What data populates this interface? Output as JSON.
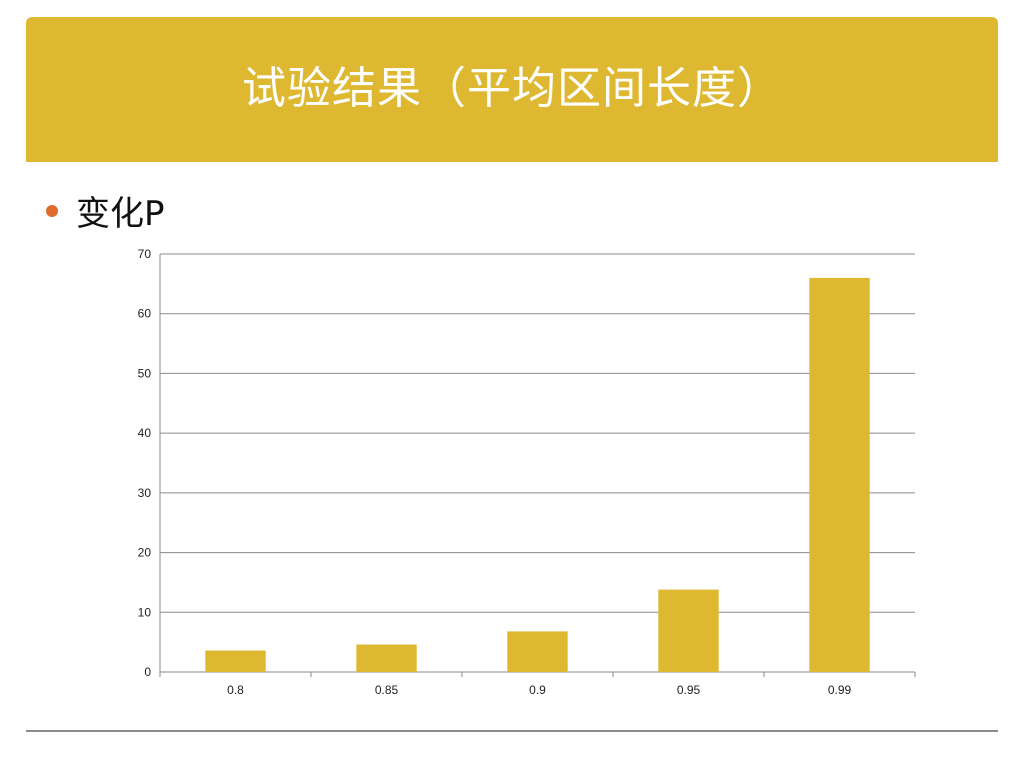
{
  "slide": {
    "title": "试验结果（平均区间长度）",
    "bullet": "变化P",
    "accent_color": "#DFB832",
    "bullet_color": "#E06B2D"
  },
  "chart_data": {
    "type": "bar",
    "categories": [
      "0.8",
      "0.85",
      "0.9",
      "0.95",
      "0.99"
    ],
    "values": [
      3.6,
      4.6,
      6.8,
      13.8,
      66
    ],
    "title": "",
    "xlabel": "",
    "ylabel": "",
    "ylim": [
      0,
      70
    ],
    "yticks": [
      0,
      10,
      20,
      30,
      40,
      50,
      60,
      70
    ],
    "grid": true,
    "legend": "none",
    "bar_color": "#DFB832"
  }
}
